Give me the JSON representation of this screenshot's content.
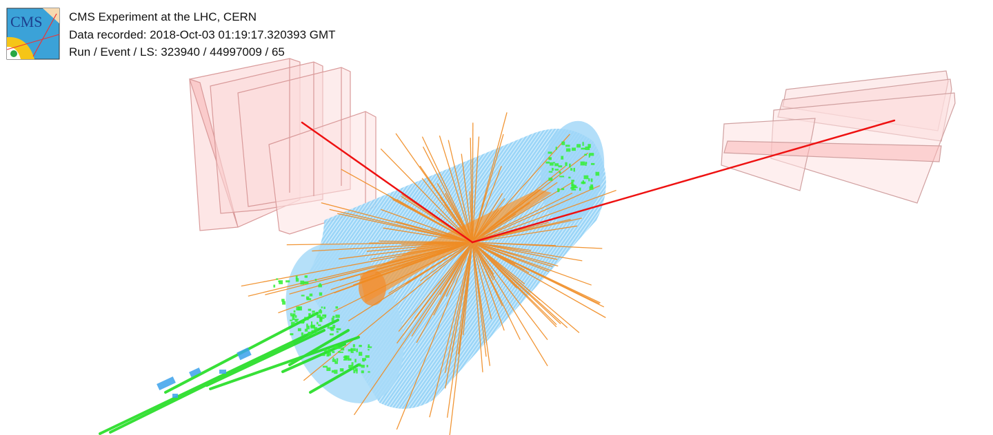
{
  "logo": {
    "text": "CMS"
  },
  "event_info": {
    "line1": "CMS Experiment at the LHC, CERN",
    "line2": "Data recorded: 2018-Oct-03 01:19:17.320393 GMT",
    "line3": "Run / Event / LS: 323940 / 44997009 / 65"
  },
  "colors": {
    "muon_chambers": "#f7b4b4",
    "tracker": "#8ccff5",
    "tracks": "#f08a1f",
    "muon_tracks": "#ee1111",
    "hcal_towers": "#33ee33",
    "ecal_hits": "#44a8ee",
    "cone": "#f59a3a"
  }
}
